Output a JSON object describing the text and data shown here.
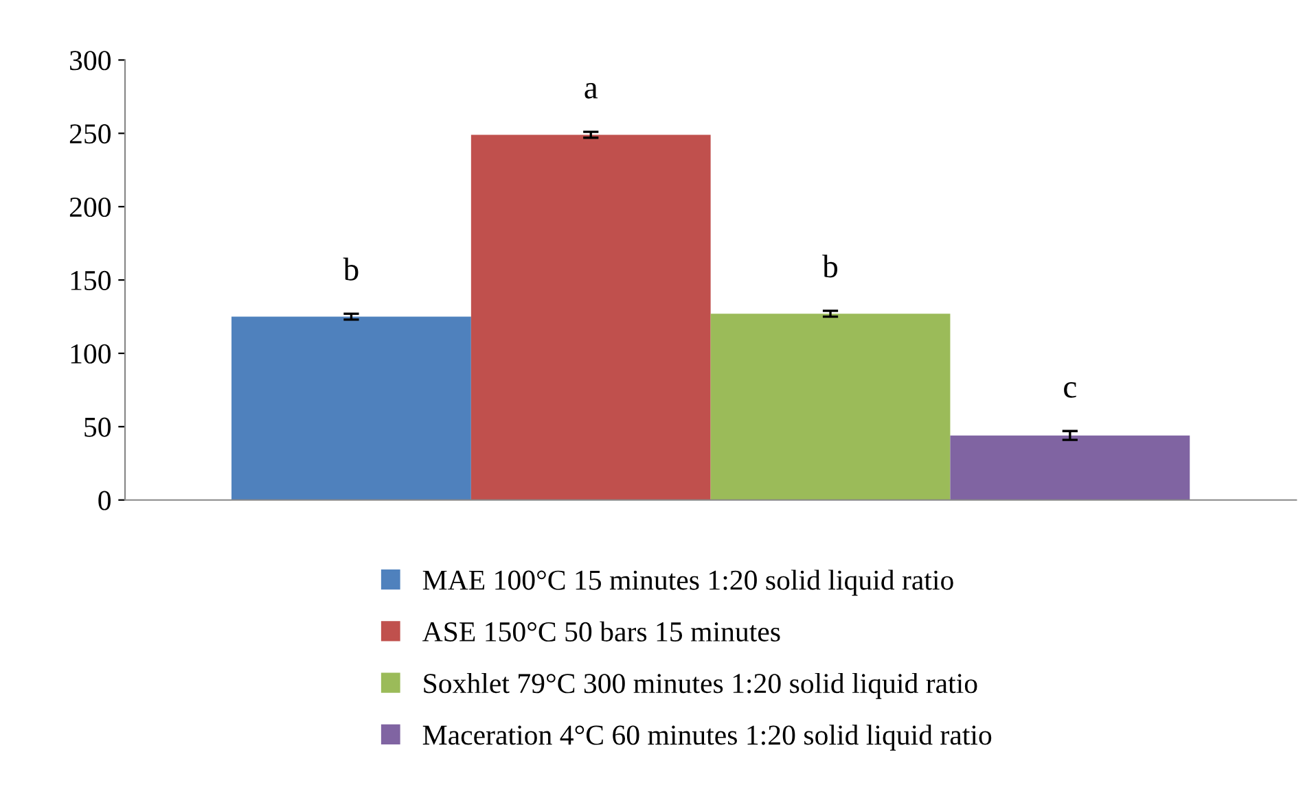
{
  "chart_data": {
    "type": "bar",
    "categories": [
      null
    ],
    "series": [
      {
        "name": "MAE 100°C 15 minutes 1:20 solid liquid ratio",
        "color": "#4f81bd",
        "values": [
          125
        ],
        "errors": [
          2
        ]
      },
      {
        "name": "ASE 150°C 50 bars 15 minutes",
        "color": "#c0504d",
        "values": [
          249
        ],
        "errors": [
          2
        ]
      },
      {
        "name": "Soxhlet 79°C 300 minutes 1:20 solid liquid ratio",
        "color": "#9bbb59",
        "values": [
          127
        ],
        "errors": [
          2
        ]
      },
      {
        "name": "Maceration 4°C 60 minutes 1:20 solid liquid ratio",
        "color": "#8064a2",
        "values": [
          44
        ],
        "errors": [
          3
        ]
      }
    ],
    "annotations": [
      "b",
      "a",
      "b",
      "c"
    ],
    "ylim": [
      0,
      300
    ],
    "yticks": [
      0,
      50,
      100,
      150,
      200,
      250,
      300
    ],
    "grid": false,
    "legend": "bottom"
  }
}
